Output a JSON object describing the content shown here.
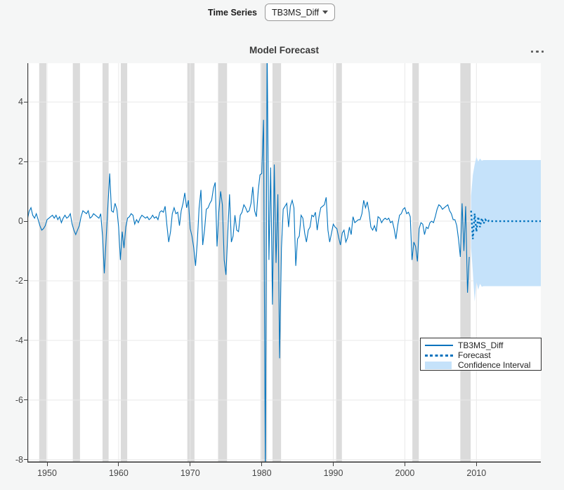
{
  "controls": {
    "time_series_label": "Time Series",
    "time_series_value": "TB3MS_Diff"
  },
  "menu": {
    "name": "options-ellipsis"
  },
  "chart_data": {
    "type": "line",
    "title": "Model Forecast",
    "xlabel": "",
    "ylabel": "",
    "xlim": [
      1947.25,
      2019
    ],
    "ylim": [
      -8.1,
      5.3
    ],
    "x_ticks": [
      1950,
      1960,
      1970,
      1980,
      1990,
      2000,
      2010
    ],
    "y_ticks": [
      4,
      2,
      0,
      -2,
      -4,
      -6,
      -8
    ],
    "grid": true,
    "colors": {
      "line": "#0072BD",
      "forecast": "#0072BD",
      "ci_fill": "#c5e2fa",
      "recession_band": "#dbdbdb",
      "grid": "#e9e9e9",
      "axis": "#3f3f3f",
      "plot_bg": "#ffffff",
      "page_bg": "#f5f6f6"
    },
    "recession_bands": [
      [
        1948.9,
        1949.9
      ],
      [
        1953.6,
        1954.6
      ],
      [
        1957.75,
        1958.6
      ],
      [
        1960.3,
        1961.2
      ],
      [
        1969.6,
        1970.6
      ],
      [
        1973.9,
        1975.15
      ],
      [
        1979.85,
        1980.75
      ],
      [
        1981.5,
        1982.7
      ],
      [
        1990.4,
        1991.2
      ],
      [
        2001.05,
        2001.95
      ],
      [
        2007.75,
        2009.2
      ]
    ],
    "legend": {
      "position": "southeast",
      "entries": [
        "TB3MS_Diff",
        "Forecast",
        "Confidence Interval"
      ]
    },
    "series": [
      {
        "name": "TB3MS_Diff",
        "style": "solid",
        "x_start": 1947.25,
        "x_step": 0.25,
        "values": [
          0.05,
          0.33,
          0.45,
          0.2,
          0.1,
          0.25,
          0.05,
          -0.15,
          -0.3,
          -0.25,
          -0.15,
          0.05,
          0.1,
          0.15,
          0.2,
          0.1,
          0.2,
          0.05,
          0.15,
          -0.05,
          0.1,
          0.2,
          0.1,
          0.15,
          0.25,
          -0.1,
          -0.3,
          -0.45,
          -0.3,
          -0.15,
          0.15,
          0.35,
          0.3,
          0.25,
          0.35,
          0.1,
          0.15,
          0.25,
          0.2,
          0.15,
          0.1,
          0.25,
          -0.5,
          -1.75,
          -0.6,
          0.5,
          1.6,
          0.35,
          0.3,
          0.6,
          0.4,
          -0.2,
          -1.3,
          -0.35,
          -0.9,
          -0.2,
          0.1,
          0.15,
          0.25,
          0.2,
          -0.1,
          0.05,
          -0.05,
          0.1,
          0.2,
          0.15,
          0.1,
          0.15,
          0.05,
          0.1,
          0.2,
          0.1,
          0.15,
          0.05,
          0.3,
          0.35,
          0.3,
          0.5,
          -0.15,
          -0.7,
          -0.35,
          0.25,
          0.45,
          0.25,
          0.3,
          -0.15,
          0.35,
          0.6,
          0.95,
          0.45,
          0.7,
          -0.25,
          -0.5,
          -0.9,
          -1.5,
          -0.65,
          0.45,
          1.05,
          -0.8,
          -0.3,
          0.4,
          0.45,
          0.6,
          0.7,
          1.1,
          1.3,
          -0.85,
          0.3,
          1.0,
          0.55,
          -1.3,
          -1.8,
          -0.4,
          0.9,
          -0.7,
          -0.5,
          0.2,
          -0.3,
          -0.35,
          0.2,
          0.3,
          0.55,
          0.45,
          0.3,
          0.35,
          0.6,
          1.15,
          0.35,
          0.15,
          1.0,
          1.55,
          1.6,
          3.4,
          -8.6,
          5.9,
          -1.3,
          1.8,
          -2.8,
          1.9,
          -1.4,
          0.9,
          -4.6,
          -0.9,
          0.4,
          0.5,
          0.6,
          -0.2,
          0.5,
          0.7,
          0.45,
          -1.5,
          -0.6,
          -0.5,
          0.2,
          0.1,
          -0.4,
          -0.7,
          -0.3,
          -0.2,
          0.2,
          0.15,
          0.3,
          -0.3,
          0.15,
          0.45,
          0.5,
          0.55,
          0.8,
          -0.3,
          -0.7,
          -0.4,
          -0.1,
          -0.2,
          -0.25,
          -0.55,
          -0.8,
          -0.4,
          -0.3,
          -0.7,
          -0.55,
          -0.2,
          -0.45,
          0.15,
          -0.05,
          0,
          0.05,
          0.05,
          0.25,
          0.7,
          0.45,
          0.65,
          0.3,
          -0.2,
          -0.3,
          -0.15,
          -0.35,
          0.15,
          0.1,
          -0.05,
          0.05,
          0.1,
          0.05,
          0.1,
          -0.05,
          0,
          -0.25,
          -0.6,
          -0.15,
          0.2,
          0.25,
          0.4,
          0.45,
          0.25,
          0.3,
          0.15,
          -1.3,
          -0.7,
          -0.85,
          -1.35,
          -0.25,
          -0.05,
          -0.1,
          -0.45,
          -0.2,
          -0.25,
          -0.05,
          0,
          -0.05,
          0.15,
          0.4,
          0.55,
          0.5,
          0.4,
          0.45,
          0.5,
          0.55,
          0.35,
          0.25,
          0.05,
          0.05,
          -0.15,
          -0.6,
          -1.2,
          0.6,
          -1.0,
          0.5,
          -2.4,
          -1.2
        ]
      },
      {
        "name": "Forecast",
        "style": "dotted",
        "x_start": 2009.25,
        "x_step": 0.25,
        "values": [
          0.35,
          -0.6,
          0.25,
          -0.35,
          0.15,
          -0.2,
          0.1,
          -0.08,
          0.05,
          -0.03,
          0.02,
          0,
          0,
          0,
          0,
          0,
          0,
          0,
          0,
          0,
          0,
          0,
          0,
          0,
          0,
          0,
          0,
          0,
          0,
          0,
          0,
          0,
          0,
          0,
          0,
          0,
          0,
          0,
          0,
          0
        ]
      },
      {
        "name": "Confidence Interval",
        "style": "band",
        "x_start": 2009.25,
        "x_step": 0.25,
        "lo": [
          -0.9,
          -1.7,
          -2.7,
          -2.05,
          -2.3,
          -2.1,
          -2.2,
          -2.18,
          -2.18,
          -2.18,
          -2.18,
          -2.18,
          -2.18,
          -2.18,
          -2.18,
          -2.18,
          -2.18,
          -2.18,
          -2.18,
          -2.18,
          -2.18,
          -2.18,
          -2.18,
          -2.18,
          -2.18,
          -2.18,
          -2.18,
          -2.18,
          -2.18,
          -2.18,
          -2.18,
          -2.18,
          -2.18,
          -2.18,
          -2.18,
          -2.18,
          -2.18,
          -2.18,
          -2.18,
          -2.18
        ],
        "hi": [
          0.85,
          1.55,
          1.9,
          2.15,
          2.0,
          2.1,
          2.03,
          2.05,
          2.05,
          2.05,
          2.05,
          2.05,
          2.05,
          2.05,
          2.05,
          2.05,
          2.05,
          2.05,
          2.05,
          2.05,
          2.05,
          2.05,
          2.05,
          2.05,
          2.05,
          2.05,
          2.05,
          2.05,
          2.05,
          2.05,
          2.05,
          2.05,
          2.05,
          2.05,
          2.05,
          2.05,
          2.05,
          2.05,
          2.05,
          2.05
        ]
      }
    ]
  }
}
